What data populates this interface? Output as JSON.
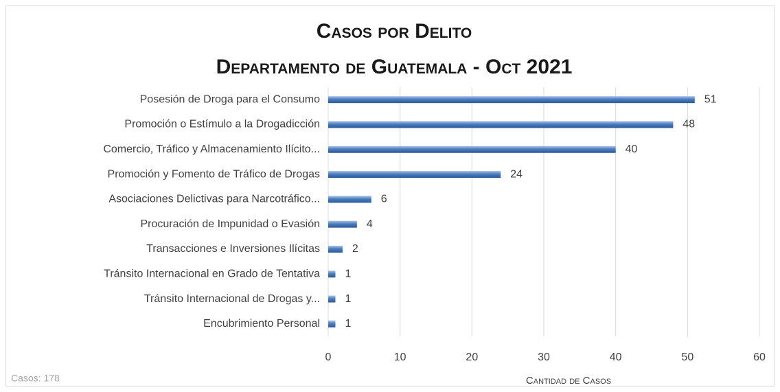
{
  "chart_data": {
    "type": "bar",
    "orientation": "horizontal",
    "title": "Casos por Delito",
    "subtitle": "Departamento de Guatemala - Oct 2021",
    "x_label": "Cantidad de Casos",
    "annotation": "Casos: 178",
    "categories": [
      "Posesión de Droga para el Consumo",
      "Promoción o Estímulo a la Drogadicción",
      "Comercio, Tráfico y Almacenamiento Ilícito...",
      "Promoción y Fomento de Tráfico de Drogas",
      "Asociaciones Delictivas para Narcotráfico...",
      "Procuración de Impunidad o Evasión",
      "Transacciones e Inversiones Ilícitas",
      "Tránsito Internacional en Grado de Tentativa",
      "Tránsito Internacional de Drogas y...",
      "Encubrimiento Personal"
    ],
    "values": [
      51,
      48,
      40,
      24,
      6,
      4,
      2,
      1,
      1,
      1
    ],
    "color": "#4a7cc0",
    "xlim": [
      0,
      60
    ],
    "xticks": [
      0,
      10,
      20,
      30,
      40,
      50,
      60
    ],
    "grid": true
  }
}
